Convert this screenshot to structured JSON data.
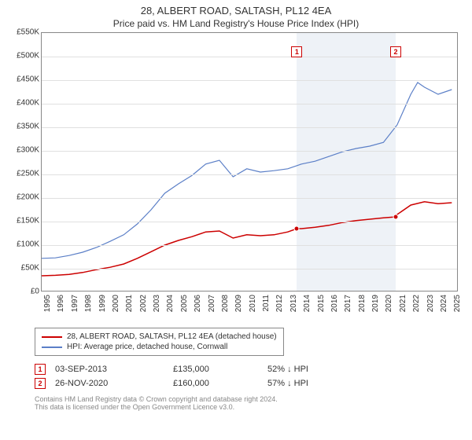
{
  "title": "28, ALBERT ROAD, SALTASH, PL12 4EA",
  "subtitle": "Price paid vs. HM Land Registry's House Price Index (HPI)",
  "chart": {
    "type": "line",
    "background_color": "#ffffff",
    "grid_color": "#e0e0e0",
    "border_color": "#888888",
    "shade_color": "#eef2f7",
    "x": {
      "min": 1995,
      "max": 2025.5,
      "ticks": [
        1995,
        1996,
        1997,
        1998,
        1999,
        2000,
        2001,
        2002,
        2003,
        2004,
        2005,
        2006,
        2007,
        2008,
        2009,
        2010,
        2011,
        2012,
        2013,
        2014,
        2015,
        2016,
        2017,
        2018,
        2019,
        2020,
        2021,
        2022,
        2023,
        2024,
        2025
      ],
      "label_fontsize": 10
    },
    "y": {
      "min": 0,
      "max": 550000,
      "ticks": [
        0,
        50000,
        100000,
        150000,
        200000,
        250000,
        300000,
        350000,
        400000,
        450000,
        500000,
        550000
      ],
      "tick_labels": [
        "£0",
        "£50K",
        "£100K",
        "£150K",
        "£200K",
        "£250K",
        "£300K",
        "£350K",
        "£400K",
        "£450K",
        "£500K",
        "£550K"
      ],
      "label_fontsize": 10
    },
    "series": [
      {
        "name": "28, ALBERT ROAD, SALTASH, PL12 4EA (detached house)",
        "color": "#cc0000",
        "line_width": 1.5,
        "points": [
          [
            1995,
            35000
          ],
          [
            1996,
            36000
          ],
          [
            1997,
            38000
          ],
          [
            1998,
            42000
          ],
          [
            1999,
            48000
          ],
          [
            2000,
            53000
          ],
          [
            2001,
            60000
          ],
          [
            2002,
            72000
          ],
          [
            2003,
            86000
          ],
          [
            2004,
            100000
          ],
          [
            2005,
            110000
          ],
          [
            2006,
            118000
          ],
          [
            2007,
            128000
          ],
          [
            2008,
            130000
          ],
          [
            2009,
            115000
          ],
          [
            2010,
            122000
          ],
          [
            2011,
            120000
          ],
          [
            2012,
            122000
          ],
          [
            2013,
            128000
          ],
          [
            2013.67,
            135000
          ],
          [
            2014,
            135000
          ],
          [
            2015,
            138000
          ],
          [
            2016,
            142000
          ],
          [
            2017,
            148000
          ],
          [
            2018,
            152000
          ],
          [
            2019,
            155000
          ],
          [
            2020,
            158000
          ],
          [
            2020.9,
            160000
          ],
          [
            2021,
            165000
          ],
          [
            2022,
            185000
          ],
          [
            2023,
            192000
          ],
          [
            2024,
            188000
          ],
          [
            2025,
            190000
          ]
        ]
      },
      {
        "name": "HPI: Average price, detached house, Cornwall",
        "color": "#5b7fc7",
        "line_width": 1.2,
        "points": [
          [
            1995,
            72000
          ],
          [
            1996,
            73000
          ],
          [
            1997,
            78000
          ],
          [
            1998,
            85000
          ],
          [
            1999,
            95000
          ],
          [
            2000,
            108000
          ],
          [
            2001,
            122000
          ],
          [
            2002,
            145000
          ],
          [
            2003,
            175000
          ],
          [
            2004,
            210000
          ],
          [
            2005,
            230000
          ],
          [
            2006,
            248000
          ],
          [
            2007,
            272000
          ],
          [
            2008,
            280000
          ],
          [
            2009,
            245000
          ],
          [
            2010,
            262000
          ],
          [
            2011,
            255000
          ],
          [
            2012,
            258000
          ],
          [
            2013,
            262000
          ],
          [
            2014,
            272000
          ],
          [
            2015,
            278000
          ],
          [
            2016,
            288000
          ],
          [
            2017,
            298000
          ],
          [
            2018,
            305000
          ],
          [
            2019,
            310000
          ],
          [
            2020,
            318000
          ],
          [
            2021,
            355000
          ],
          [
            2022,
            420000
          ],
          [
            2022.5,
            445000
          ],
          [
            2023,
            435000
          ],
          [
            2024,
            420000
          ],
          [
            2025,
            430000
          ]
        ]
      }
    ],
    "shaded_ranges": [
      {
        "from": 2013.67,
        "to": 2020.9
      }
    ],
    "markers": [
      {
        "label": "1",
        "x": 2013.67,
        "y_chart": 510000,
        "data_y": 135000
      },
      {
        "label": "2",
        "x": 2020.9,
        "y_chart": 510000,
        "data_y": 160000
      }
    ]
  },
  "legend": {
    "items": [
      {
        "color": "#cc0000",
        "label": "28, ALBERT ROAD, SALTASH, PL12 4EA (detached house)"
      },
      {
        "color": "#5b7fc7",
        "label": "HPI: Average price, detached house, Cornwall"
      }
    ]
  },
  "annotations": [
    {
      "n": "1",
      "date": "03-SEP-2013",
      "price": "£135,000",
      "delta": "52% ↓ HPI"
    },
    {
      "n": "2",
      "date": "26-NOV-2020",
      "price": "£160,000",
      "delta": "57% ↓ HPI"
    }
  ],
  "footer": {
    "line1": "Contains HM Land Registry data © Crown copyright and database right 2024.",
    "line2": "This data is licensed under the Open Government Licence v3.0."
  }
}
